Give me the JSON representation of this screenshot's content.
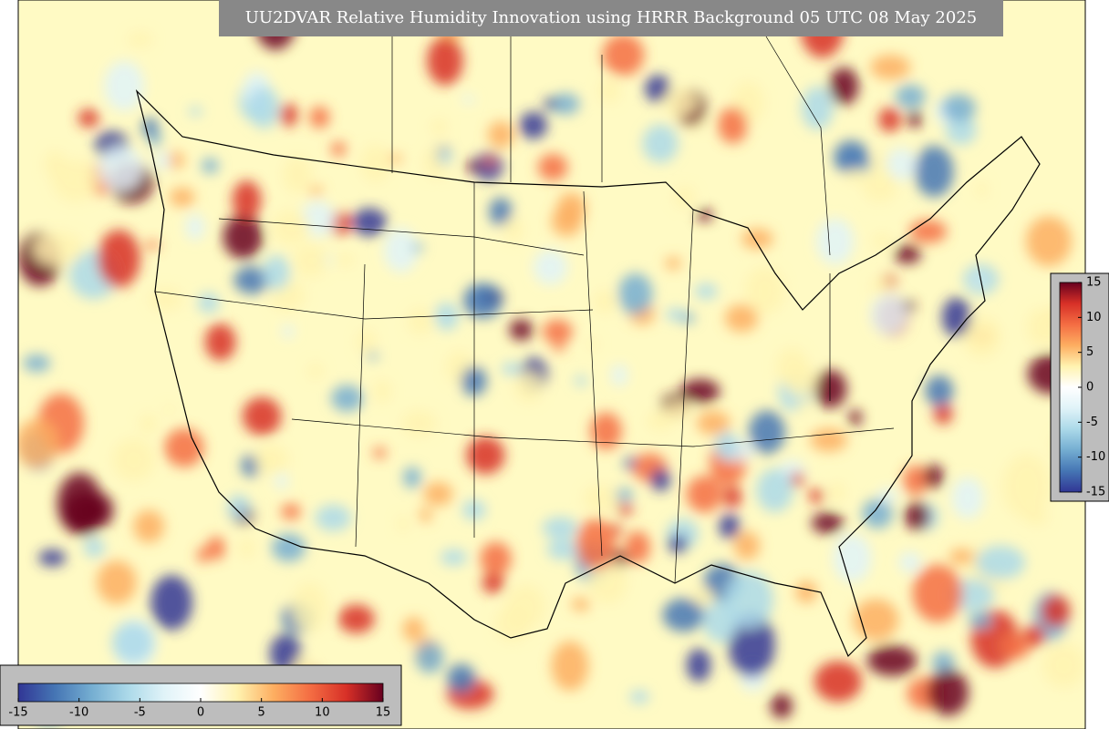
{
  "title": "UU2DVAR Relative Humidity Innovation using HRRR Background 05 UTC 08 May 2025",
  "colormap": [
    "#313695",
    "#4575b4",
    "#74add1",
    "#abd9e9",
    "#e0f3f8",
    "#ffffff",
    "#fff3b0",
    "#fdae61",
    "#f46d43",
    "#d73027",
    "#67001f"
  ],
  "colorbars": [
    {
      "orientation": "horizontal",
      "lim": [
        -15,
        15
      ],
      "ticks": [
        -15,
        -10,
        -5,
        0,
        5,
        10,
        15
      ]
    },
    {
      "orientation": "vertical",
      "lim": [
        -15,
        15
      ],
      "ticks": [
        -15,
        -10,
        -5,
        0,
        5,
        10,
        15
      ]
    }
  ]
}
